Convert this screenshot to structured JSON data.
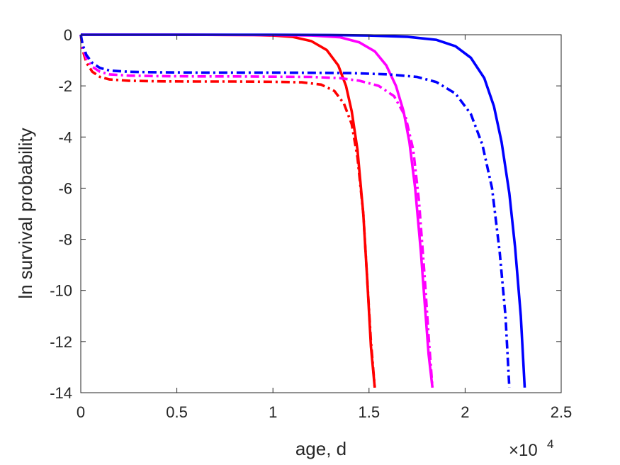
{
  "chart_data": {
    "type": "line",
    "xlabel": "age, d",
    "ylabel": "ln survival probability",
    "x_exponent_label": "×10",
    "x_exponent_power": "4",
    "xlim": [
      0,
      25000
    ],
    "ylim": [
      -14,
      0
    ],
    "x_ticks": [
      0,
      5000,
      10000,
      15000,
      20000,
      25000
    ],
    "x_tick_labels": [
      "0",
      "0.5",
      "1",
      "1.5",
      "2",
      "2.5"
    ],
    "y_ticks": [
      0,
      -2,
      -4,
      -6,
      -8,
      -10,
      -12,
      -14
    ],
    "y_tick_labels": [
      "0",
      "-2",
      "-4",
      "-6",
      "-8",
      "-10",
      "-12",
      "-14"
    ],
    "grid": false,
    "series": [
      {
        "color": "#ff0000",
        "style": "solid",
        "x": [
          0,
          5000,
          9000,
          10000,
          11000,
          12000,
          12800,
          13400,
          13800,
          14100,
          14400,
          14700,
          14900,
          15100,
          15300
        ],
        "y": [
          0,
          0,
          -0.01,
          -0.03,
          -0.08,
          -0.25,
          -0.6,
          -1.2,
          -2.0,
          -3.0,
          -4.5,
          -7.0,
          -9.5,
          -12.2,
          -13.8
        ]
      },
      {
        "color": "#ff0000",
        "style": "dashdot",
        "x": [
          0,
          100,
          300,
          600,
          1000,
          1500,
          2500,
          4000,
          6000,
          8000,
          10000,
          11500,
          12500,
          13200,
          13700,
          14100,
          14400,
          14700,
          14900,
          15100,
          15300
        ],
        "y": [
          0,
          -0.6,
          -1.1,
          -1.45,
          -1.65,
          -1.75,
          -1.8,
          -1.82,
          -1.83,
          -1.83,
          -1.84,
          -1.86,
          -1.95,
          -2.2,
          -2.7,
          -3.5,
          -4.8,
          -7.0,
          -9.5,
          -12.0,
          -13.8
        ]
      },
      {
        "color": "#ff00ff",
        "style": "solid",
        "x": [
          0,
          5000,
          10000,
          12000,
          13500,
          14500,
          15300,
          15900,
          16400,
          16800,
          17100,
          17400,
          17700,
          17900,
          18100,
          18300
        ],
        "y": [
          0,
          0,
          -0.01,
          -0.03,
          -0.1,
          -0.3,
          -0.65,
          -1.2,
          -2.0,
          -3.0,
          -4.2,
          -6.0,
          -8.5,
          -10.5,
          -12.5,
          -13.8
        ]
      },
      {
        "color": "#ff00ff",
        "style": "dashdot",
        "x": [
          0,
          100,
          300,
          600,
          1000,
          1500,
          2500,
          4000,
          6000,
          8000,
          10000,
          12000,
          13500,
          14500,
          15500,
          16300,
          16900,
          17300,
          17600,
          17900,
          18100,
          18300
        ],
        "y": [
          0,
          -0.5,
          -0.95,
          -1.25,
          -1.45,
          -1.55,
          -1.6,
          -1.62,
          -1.63,
          -1.63,
          -1.64,
          -1.65,
          -1.7,
          -1.8,
          -2.0,
          -2.4,
          -3.2,
          -4.5,
          -6.5,
          -9.5,
          -11.8,
          -13.8
        ]
      },
      {
        "color": "#0000ff",
        "style": "solid",
        "x": [
          0,
          5000,
          10000,
          13000,
          15000,
          17000,
          18500,
          19500,
          20300,
          21000,
          21500,
          21900,
          22300,
          22600,
          22900,
          23100
        ],
        "y": [
          0,
          0,
          0,
          -0.01,
          -0.03,
          -0.08,
          -0.2,
          -0.45,
          -0.9,
          -1.7,
          -2.8,
          -4.2,
          -6.2,
          -8.3,
          -11.0,
          -13.8
        ]
      },
      {
        "color": "#0000ff",
        "style": "dashdot",
        "x": [
          0,
          100,
          300,
          600,
          1000,
          1500,
          2500,
          4000,
          6000,
          8000,
          10000,
          12000,
          14000,
          16000,
          17500,
          18500,
          19500,
          20300,
          20900,
          21400,
          21800,
          22100,
          22300
        ],
        "y": [
          0,
          -0.4,
          -0.8,
          -1.1,
          -1.3,
          -1.4,
          -1.45,
          -1.47,
          -1.48,
          -1.48,
          -1.48,
          -1.49,
          -1.5,
          -1.55,
          -1.65,
          -1.85,
          -2.3,
          -3.1,
          -4.3,
          -6.0,
          -8.5,
          -11.0,
          -13.8
        ]
      }
    ]
  }
}
